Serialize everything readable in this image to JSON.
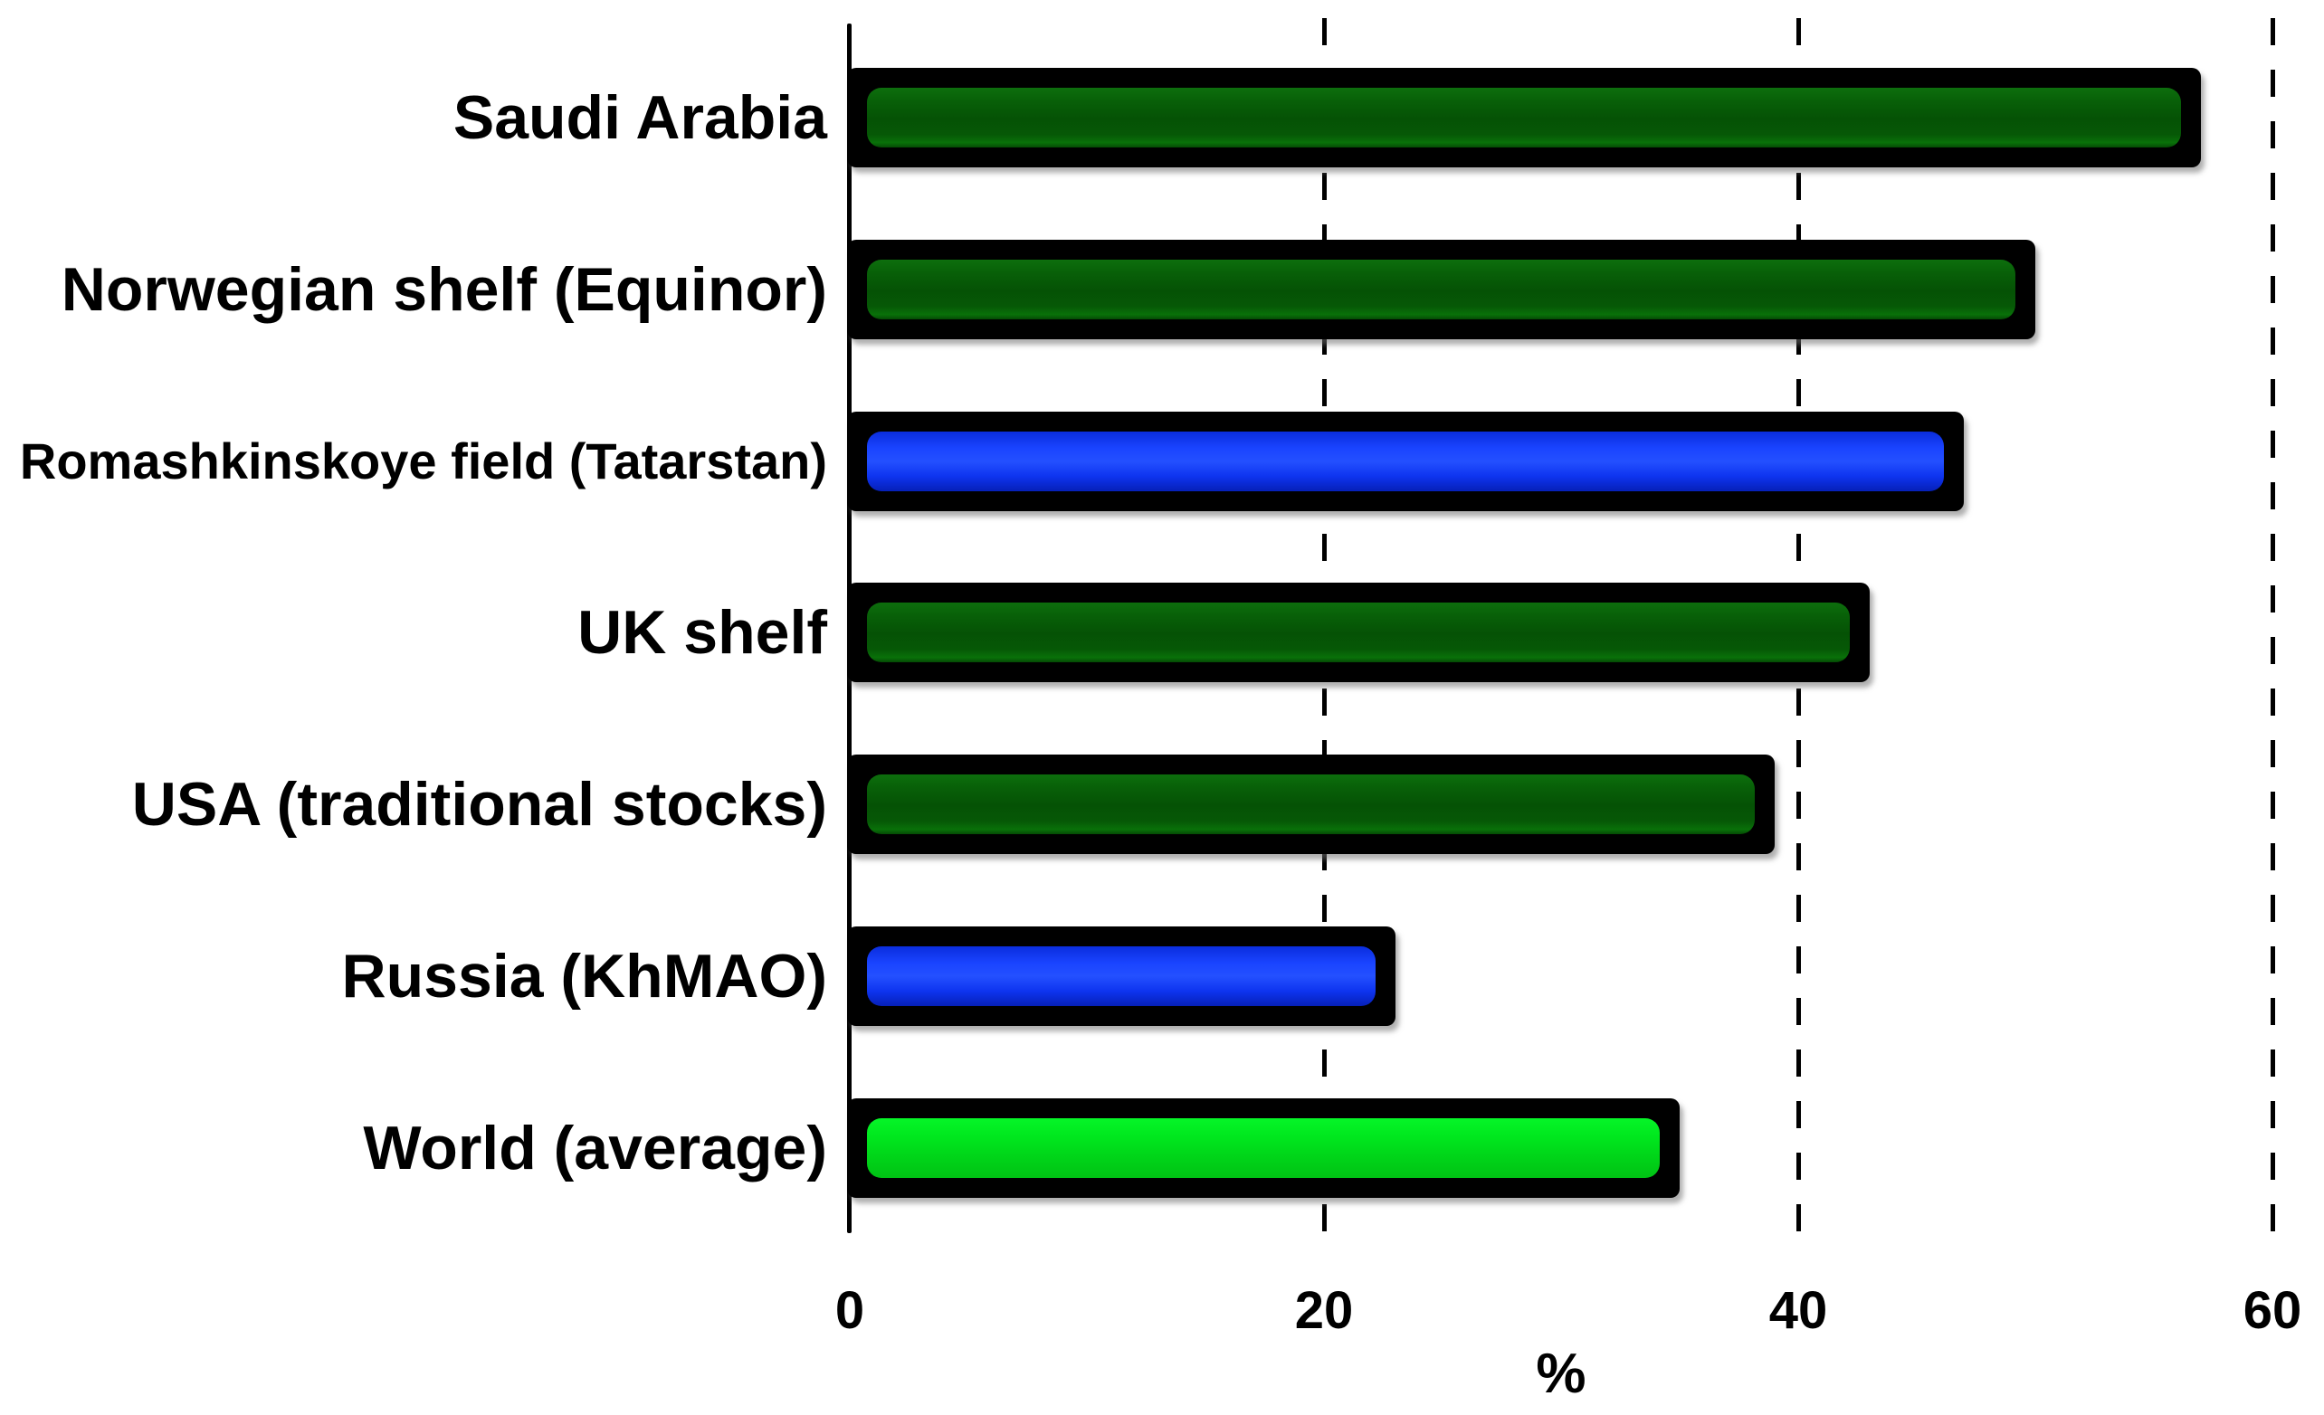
{
  "chart_data": {
    "type": "bar",
    "orientation": "horizontal",
    "title": "",
    "xlabel": "%",
    "ylabel": "",
    "xlim": [
      0,
      60
    ],
    "x_ticks": [
      0,
      20,
      40,
      60
    ],
    "x_tick_labels": [
      "0",
      "20",
      "40",
      "60"
    ],
    "grid": "vertical dashed gridlines at 20, 40, 60; solid y-axis at 0; no horizontal axis line",
    "legend": "none",
    "background": "#ffffff",
    "categories": [
      "Saudi Arabia",
      "Norwegian shelf (Equinor)",
      "Romashkinskoye field (Tatarstan)",
      "UK shelf",
      "USA (traditional stocks)",
      "Russia (KhMAO)",
      "World (average)"
    ],
    "values": [
      57,
      50,
      47,
      43,
      39,
      23,
      35
    ],
    "bar_color_keys": [
      "dark-green",
      "dark-green",
      "blue",
      "dark-green",
      "dark-green",
      "blue",
      "bright-green"
    ],
    "colors": {
      "dark-green": "#075907",
      "blue": "#1a44ff",
      "bright-green": "#00d619",
      "bar-border": "#000000",
      "axis": "#000000",
      "text": "#000000"
    }
  }
}
